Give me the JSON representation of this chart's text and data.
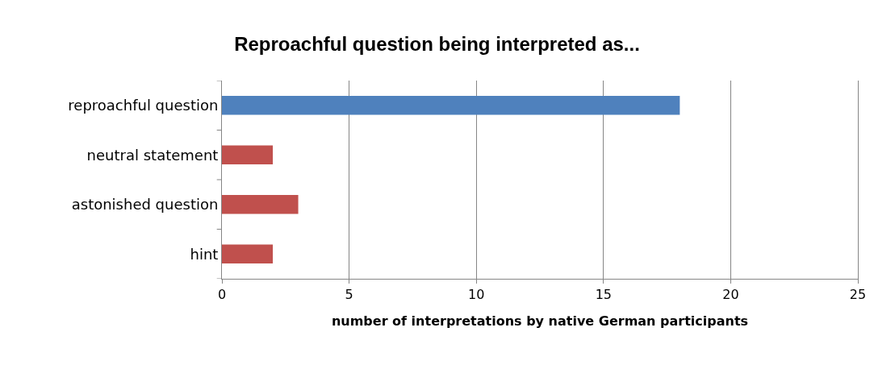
{
  "chart_data": {
    "type": "bar",
    "orientation": "horizontal",
    "title": "Reproachful question being interpreted as...",
    "xlabel": "number of interpretations by native German participants",
    "categories": [
      "reproachful question",
      "neutral statement",
      "astonished question",
      "hint"
    ],
    "values": [
      18,
      2,
      3,
      2
    ],
    "colors": [
      "#4f81bd",
      "#c0504d",
      "#c0504d",
      "#c0504d"
    ],
    "xlim": [
      0,
      25
    ],
    "xticks": [
      0,
      5,
      10,
      15,
      20,
      25
    ],
    "grid": "x"
  }
}
